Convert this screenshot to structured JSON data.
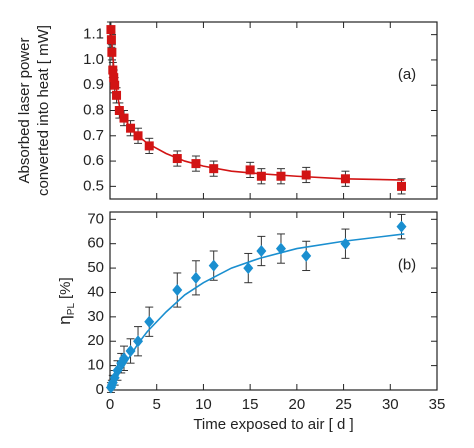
{
  "chart_data": [
    {
      "type": "scatter",
      "annotation": "(a)",
      "ylabel": [
        "Absorbed laser power",
        "converted into heat [ mW]"
      ],
      "xlim": [
        0,
        35
      ],
      "xticks": [
        0,
        5,
        10,
        15,
        20,
        25,
        30,
        35
      ],
      "show_xtick_labels": false,
      "ylim": [
        0.45,
        1.15
      ],
      "yticks": [
        0.5,
        0.6,
        0.7,
        0.8,
        0.9,
        {
          "value": 1,
          "label": "1.0"
        },
        1.1
      ],
      "series": [
        {
          "mode": "markers",
          "marker": "square",
          "color": "#d21414",
          "x": [
            0.1,
            0.15,
            0.2,
            0.3,
            0.4,
            0.5,
            0.7,
            1.0,
            1.5,
            2.2,
            3.0,
            4.2,
            7.2,
            9.2,
            11.1,
            15,
            16.2,
            18.3,
            21,
            25.2,
            31.2
          ],
          "values": [
            1.12,
            1.08,
            1.03,
            0.96,
            0.93,
            0.9,
            0.86,
            0.8,
            0.77,
            0.73,
            0.7,
            0.66,
            0.61,
            0.59,
            0.57,
            0.565,
            0.54,
            0.54,
            0.545,
            0.53,
            0.5
          ],
          "errors": [
            0.03,
            0.03,
            0.03,
            0.03,
            0.03,
            0.03,
            0.03,
            0.03,
            0.03,
            0.03,
            0.03,
            0.03,
            0.03,
            0.03,
            0.03,
            0.03,
            0.03,
            0.03,
            0.03,
            0.03,
            0.03
          ]
        },
        {
          "mode": "line",
          "color": "#d21414",
          "x": [
            0.1,
            0.5,
            1,
            2,
            3,
            4,
            6,
            8,
            10,
            13,
            16,
            20,
            25,
            31.5
          ],
          "values": [
            1.12,
            0.92,
            0.82,
            0.74,
            0.7,
            0.67,
            0.63,
            0.6,
            0.58,
            0.56,
            0.55,
            0.54,
            0.53,
            0.525
          ]
        }
      ]
    },
    {
      "type": "scatter",
      "annotation": "(b)",
      "ylabel": [
        "η",
        "PL",
        "[%]"
      ],
      "xlabel": "Time exposed to air [ d ]",
      "xlim": [
        0,
        35
      ],
      "xticks": [
        0,
        5,
        10,
        15,
        20,
        25,
        30,
        35
      ],
      "show_xtick_labels": true,
      "ylim": [
        0,
        73
      ],
      "yticks": [
        0,
        10,
        20,
        30,
        40,
        50,
        60,
        70
      ],
      "series": [
        {
          "mode": "markers",
          "marker": "diamond",
          "color": "#1a8fd0",
          "x": [
            0.1,
            0.2,
            0.3,
            0.5,
            0.8,
            1.2,
            1.5,
            2.2,
            3.0,
            4.2,
            7.2,
            9.2,
            11.1,
            14.8,
            16.2,
            18.3,
            21,
            25.2,
            31.2
          ],
          "values": [
            1,
            2,
            3,
            5,
            8,
            11,
            13,
            16,
            20,
            28,
            41,
            46,
            51,
            50,
            57,
            58,
            55,
            60,
            67
          ],
          "errors": [
            2,
            2,
            3,
            3,
            4,
            4,
            5,
            5,
            6,
            6,
            7,
            7,
            6,
            6,
            6,
            6,
            6,
            6,
            5
          ]
        },
        {
          "mode": "line",
          "color": "#1a8fd0",
          "x": [
            0,
            1,
            2,
            3,
            4,
            6,
            8,
            10,
            13,
            16,
            20,
            25,
            31.5
          ],
          "values": [
            0,
            7,
            13,
            19,
            24,
            32,
            39,
            44,
            50,
            54,
            58,
            61,
            64
          ]
        }
      ]
    }
  ]
}
